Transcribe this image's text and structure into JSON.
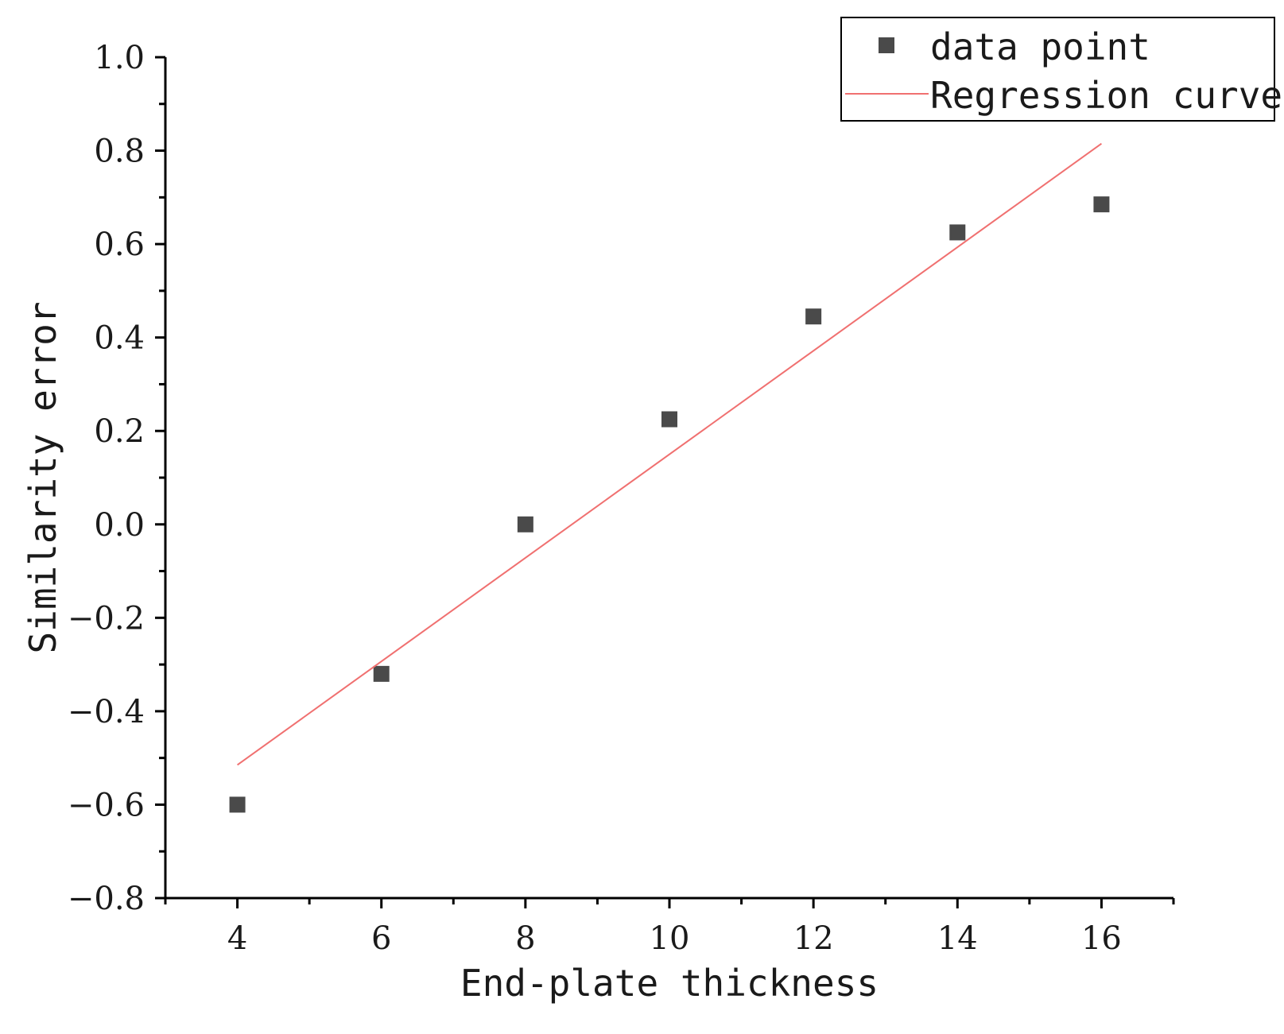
{
  "chart_data": {
    "type": "scatter",
    "title": "",
    "xlabel": "End-plate thickness",
    "ylabel": "Similarity error",
    "xlim": [
      3,
      17
    ],
    "ylim": [
      -0.8,
      1.0
    ],
    "x_ticks": [
      4,
      6,
      8,
      10,
      12,
      14,
      16
    ],
    "x_tick_labels": [
      "4",
      "6",
      "8",
      "10",
      "12",
      "14",
      "16"
    ],
    "y_ticks": [
      -0.8,
      -0.6,
      -0.4,
      -0.2,
      0.0,
      0.2,
      0.4,
      0.6,
      0.8,
      1.0
    ],
    "y_tick_labels": [
      "−0.8",
      "−0.6",
      "−0.4",
      "−0.2",
      "0.0",
      "0.2",
      "0.4",
      "0.6",
      "0.8",
      "1.0"
    ],
    "grid": false,
    "legend_position": "top-right",
    "series": [
      {
        "name": "data point",
        "kind": "scatter",
        "marker": "square",
        "color": "#4a4a4a",
        "x": [
          4,
          6,
          8,
          10,
          12,
          14,
          16
        ],
        "y": [
          -0.6,
          -0.32,
          0.0,
          0.225,
          0.445,
          0.625,
          0.685
        ]
      },
      {
        "name": "Regression curve",
        "kind": "line",
        "color": "#f07070",
        "x": [
          4,
          16
        ],
        "y": [
          -0.515,
          0.815
        ]
      }
    ]
  }
}
